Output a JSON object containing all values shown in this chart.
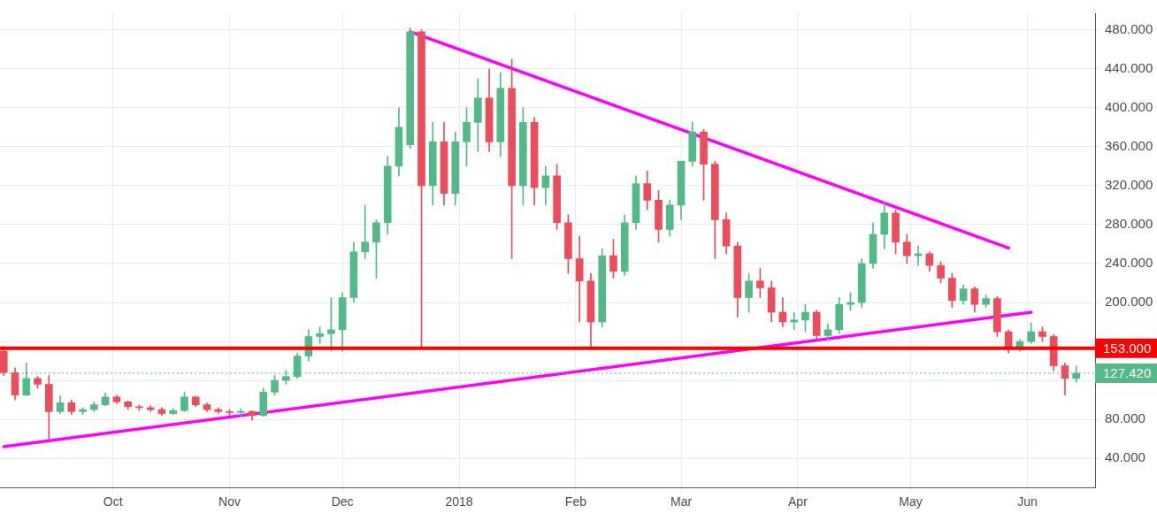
{
  "chart_data": {
    "type": "candlestick",
    "x": [
      "2017-09-02",
      "2017-09-05",
      "2017-09-08",
      "2017-09-11",
      "2017-09-14",
      "2017-09-17",
      "2017-09-20",
      "2017-09-23",
      "2017-09-26",
      "2017-09-29",
      "2017-10-02",
      "2017-10-05",
      "2017-10-08",
      "2017-10-11",
      "2017-10-14",
      "2017-10-17",
      "2017-10-20",
      "2017-10-23",
      "2017-10-26",
      "2017-10-29",
      "2017-11-01",
      "2017-11-04",
      "2017-11-07",
      "2017-11-10",
      "2017-11-13",
      "2017-11-16",
      "2017-11-19",
      "2017-11-22",
      "2017-11-25",
      "2017-11-28",
      "2017-12-01",
      "2017-12-04",
      "2017-12-07",
      "2017-12-10",
      "2017-12-13",
      "2017-12-16",
      "2017-12-19",
      "2017-12-22",
      "2017-12-25",
      "2017-12-28",
      "2017-12-31",
      "2018-01-03",
      "2018-01-06",
      "2018-01-09",
      "2018-01-12",
      "2018-01-15",
      "2018-01-18",
      "2018-01-21",
      "2018-01-24",
      "2018-01-27",
      "2018-01-30",
      "2018-02-02",
      "2018-02-05",
      "2018-02-08",
      "2018-02-11",
      "2018-02-14",
      "2018-02-17",
      "2018-02-20",
      "2018-02-23",
      "2018-02-26",
      "2018-03-01",
      "2018-03-04",
      "2018-03-07",
      "2018-03-10",
      "2018-03-13",
      "2018-03-16",
      "2018-03-19",
      "2018-03-22",
      "2018-03-25",
      "2018-03-28",
      "2018-03-31",
      "2018-04-03",
      "2018-04-06",
      "2018-04-09",
      "2018-04-12",
      "2018-04-15",
      "2018-04-18",
      "2018-04-21",
      "2018-04-24",
      "2018-04-27",
      "2018-04-30",
      "2018-05-03",
      "2018-05-06",
      "2018-05-09",
      "2018-05-12",
      "2018-05-15",
      "2018-05-18",
      "2018-05-21",
      "2018-05-24",
      "2018-05-27",
      "2018-05-30",
      "2018-06-02",
      "2018-06-05",
      "2018-06-08",
      "2018-06-11",
      "2018-06-14"
    ],
    "ohlc": [
      [
        150,
        155,
        125,
        128
      ],
      [
        128,
        133,
        100,
        105
      ],
      [
        105,
        138,
        104,
        122
      ],
      [
        122,
        124,
        112,
        116
      ],
      [
        116,
        125,
        60,
        88
      ],
      [
        88,
        104,
        86,
        97
      ],
      [
        97,
        100,
        85,
        88
      ],
      [
        88,
        92,
        85,
        90
      ],
      [
        90,
        98,
        88,
        95
      ],
      [
        95,
        107,
        94,
        103
      ],
      [
        103,
        105,
        96,
        98
      ],
      [
        98,
        99,
        90,
        93
      ],
      [
        93,
        95,
        89,
        92
      ],
      [
        92,
        94,
        88,
        90
      ],
      [
        90,
        92,
        84,
        86
      ],
      [
        86,
        91,
        85,
        89
      ],
      [
        89,
        108,
        88,
        103
      ],
      [
        103,
        104,
        93,
        95
      ],
      [
        95,
        97,
        88,
        90
      ],
      [
        90,
        92,
        86,
        88
      ],
      [
        88,
        90,
        84,
        87
      ],
      [
        87,
        91,
        83,
        88
      ],
      [
        88,
        89,
        79,
        84
      ],
      [
        84,
        112,
        83,
        108
      ],
      [
        108,
        125,
        105,
        120
      ],
      [
        120,
        130,
        116,
        124
      ],
      [
        124,
        148,
        122,
        145
      ],
      [
        145,
        172,
        140,
        165
      ],
      [
        165,
        175,
        158,
        168
      ],
      [
        168,
        205,
        150,
        172
      ],
      [
        172,
        210,
        150,
        205
      ],
      [
        205,
        262,
        200,
        252
      ],
      [
        252,
        300,
        245,
        262
      ],
      [
        262,
        285,
        225,
        282
      ],
      [
        282,
        350,
        270,
        340
      ],
      [
        340,
        400,
        330,
        380
      ],
      [
        362,
        482,
        358,
        478
      ],
      [
        478,
        480,
        155,
        320
      ],
      [
        320,
        385,
        300,
        365
      ],
      [
        365,
        385,
        300,
        312
      ],
      [
        312,
        375,
        300,
        365
      ],
      [
        365,
        400,
        340,
        385
      ],
      [
        385,
        430,
        355,
        410
      ],
      [
        410,
        440,
        355,
        365
      ],
      [
        365,
        436,
        350,
        420
      ],
      [
        420,
        450,
        245,
        320
      ],
      [
        320,
        400,
        300,
        385
      ],
      [
        385,
        390,
        300,
        318
      ],
      [
        318,
        340,
        300,
        330
      ],
      [
        330,
        342,
        275,
        282
      ],
      [
        282,
        290,
        230,
        245
      ],
      [
        245,
        268,
        180,
        222
      ],
      [
        222,
        230,
        155,
        180
      ],
      [
        180,
        255,
        175,
        248
      ],
      [
        248,
        265,
        225,
        232
      ],
      [
        232,
        290,
        228,
        282
      ],
      [
        282,
        330,
        275,
        322
      ],
      [
        322,
        335,
        295,
        305
      ],
      [
        305,
        315,
        262,
        275
      ],
      [
        275,
        305,
        268,
        300
      ],
      [
        300,
        345,
        285,
        345
      ],
      [
        345,
        385,
        340,
        375
      ],
      [
        375,
        378,
        305,
        342
      ],
      [
        342,
        345,
        245,
        285
      ],
      [
        285,
        292,
        250,
        258
      ],
      [
        258,
        262,
        185,
        205
      ],
      [
        205,
        230,
        190,
        222
      ],
      [
        222,
        235,
        205,
        215
      ],
      [
        215,
        222,
        180,
        190
      ],
      [
        190,
        205,
        175,
        180
      ],
      [
        180,
        190,
        172,
        182
      ],
      [
        182,
        198,
        170,
        190
      ],
      [
        190,
        192,
        162,
        166
      ],
      [
        166,
        178,
        162,
        172
      ],
      [
        172,
        205,
        168,
        198
      ],
      [
        198,
        210,
        192,
        200
      ],
      [
        200,
        245,
        195,
        240
      ],
      [
        240,
        282,
        235,
        270
      ],
      [
        270,
        304,
        255,
        292
      ],
      [
        292,
        295,
        250,
        262
      ],
      [
        262,
        270,
        240,
        248
      ],
      [
        248,
        258,
        238,
        250
      ],
      [
        250,
        252,
        232,
        238
      ],
      [
        238,
        242,
        220,
        225
      ],
      [
        225,
        230,
        195,
        202
      ],
      [
        202,
        218,
        198,
        214
      ],
      [
        214,
        216,
        190,
        198
      ],
      [
        198,
        208,
        195,
        204
      ],
      [
        204,
        206,
        165,
        170
      ],
      [
        170,
        172,
        148,
        152
      ],
      [
        152,
        162,
        150,
        160
      ],
      [
        160,
        179,
        158,
        170
      ],
      [
        170,
        175,
        160,
        165
      ],
      [
        165,
        167,
        130,
        135
      ],
      [
        135,
        138,
        105,
        122
      ],
      [
        122,
        135,
        118,
        127.42
      ]
    ],
    "colors": [
      "#eb4d5c",
      "#eb4d5c",
      "#53b987",
      "#eb4d5c",
      "#eb4d5c",
      "#53b987",
      "#eb4d5c",
      "#53b987",
      "#53b987",
      "#53b987",
      "#eb4d5c",
      "#eb4d5c",
      "#eb4d5c",
      "#eb4d5c",
      "#eb4d5c",
      "#53b987",
      "#53b987",
      "#eb4d5c",
      "#eb4d5c",
      "#eb4d5c",
      "#eb4d5c",
      "#53b987",
      "#eb4d5c",
      "#53b987",
      "#53b987",
      "#53b987",
      "#53b987",
      "#53b987",
      "#53b987",
      "#53b987",
      "#53b987",
      "#53b987",
      "#53b987",
      "#53b987",
      "#53b987",
      "#53b987",
      "#53b987",
      "#eb4d5c",
      "#53b987",
      "#eb4d5c",
      "#53b987",
      "#53b987",
      "#53b987",
      "#eb4d5c",
      "#53b987",
      "#eb4d5c",
      "#53b987",
      "#eb4d5c",
      "#53b987",
      "#eb4d5c",
      "#eb4d5c",
      "#eb4d5c",
      "#eb4d5c",
      "#53b987",
      "#eb4d5c",
      "#53b987",
      "#53b987",
      "#eb4d5c",
      "#eb4d5c",
      "#53b987",
      "#53b987",
      "#53b987",
      "#eb4d5c",
      "#eb4d5c",
      "#eb4d5c",
      "#eb4d5c",
      "#53b987",
      "#eb4d5c",
      "#eb4d5c",
      "#eb4d5c",
      "#53b987",
      "#53b987",
      "#eb4d5c",
      "#53b987",
      "#53b987",
      "#53b987",
      "#53b987",
      "#53b987",
      "#53b987",
      "#eb4d5c",
      "#eb4d5c",
      "#53b987",
      "#eb4d5c",
      "#eb4d5c",
      "#eb4d5c",
      "#53b987",
      "#eb4d5c",
      "#53b987",
      "#eb4d5c",
      "#eb4d5c",
      "#53b987",
      "#53b987",
      "#eb4d5c",
      "#eb4d5c",
      "#eb4d5c",
      "#53b987"
    ],
    "series": [
      {
        "type": "line",
        "color": "#ff00ff",
        "x": [
          "2017-12-19",
          "2018-05-27"
        ],
        "values": [
          478,
          256
        ]
      },
      {
        "type": "line",
        "color": "#ff00ff",
        "x": [
          "2017-09-02",
          "2018-06-02"
        ],
        "values": [
          52,
          190
        ]
      }
    ],
    "ref_lines": [
      {
        "axis": "y",
        "value": 153,
        "label": "153.000",
        "color": "#ff0000",
        "line_style": "solid"
      },
      {
        "axis": "y",
        "value": 127.42,
        "label": "127.420",
        "color": "#53b987",
        "line_style": "dotted"
      }
    ],
    "xlim": [
      "2017-09-01",
      "2018-06-19"
    ],
    "xticks": [
      {
        "value": "2017-10-01",
        "label": "Oct"
      },
      {
        "value": "2017-11-01",
        "label": "Nov"
      },
      {
        "value": "2017-12-01",
        "label": "Dec"
      },
      {
        "value": "2018-01-01",
        "label": "2018"
      },
      {
        "value": "2018-02-01",
        "label": "Feb"
      },
      {
        "value": "2018-03-01",
        "label": "Mar"
      },
      {
        "value": "2018-04-01",
        "label": "Apr"
      },
      {
        "value": "2018-05-01",
        "label": "May"
      },
      {
        "value": "2018-06-01",
        "label": "Jun"
      }
    ],
    "ylim": [
      10,
      497
    ],
    "yticks": [
      {
        "value": 40,
        "label": "40.000"
      },
      {
        "value": 80,
        "label": "80.000"
      },
      {
        "value": 120,
        "label": null
      },
      {
        "value": 160,
        "label": null
      },
      {
        "value": 200,
        "label": "200.000"
      },
      {
        "value": 240,
        "label": "240.000"
      },
      {
        "value": 280,
        "label": "280.000"
      },
      {
        "value": 320,
        "label": "320.000"
      },
      {
        "value": 360,
        "label": "360.000"
      },
      {
        "value": 400,
        "label": "400.000"
      },
      {
        "value": 440,
        "label": "440.000"
      },
      {
        "value": 480,
        "label": "480.000"
      }
    ],
    "grid": true,
    "legend": false
  }
}
